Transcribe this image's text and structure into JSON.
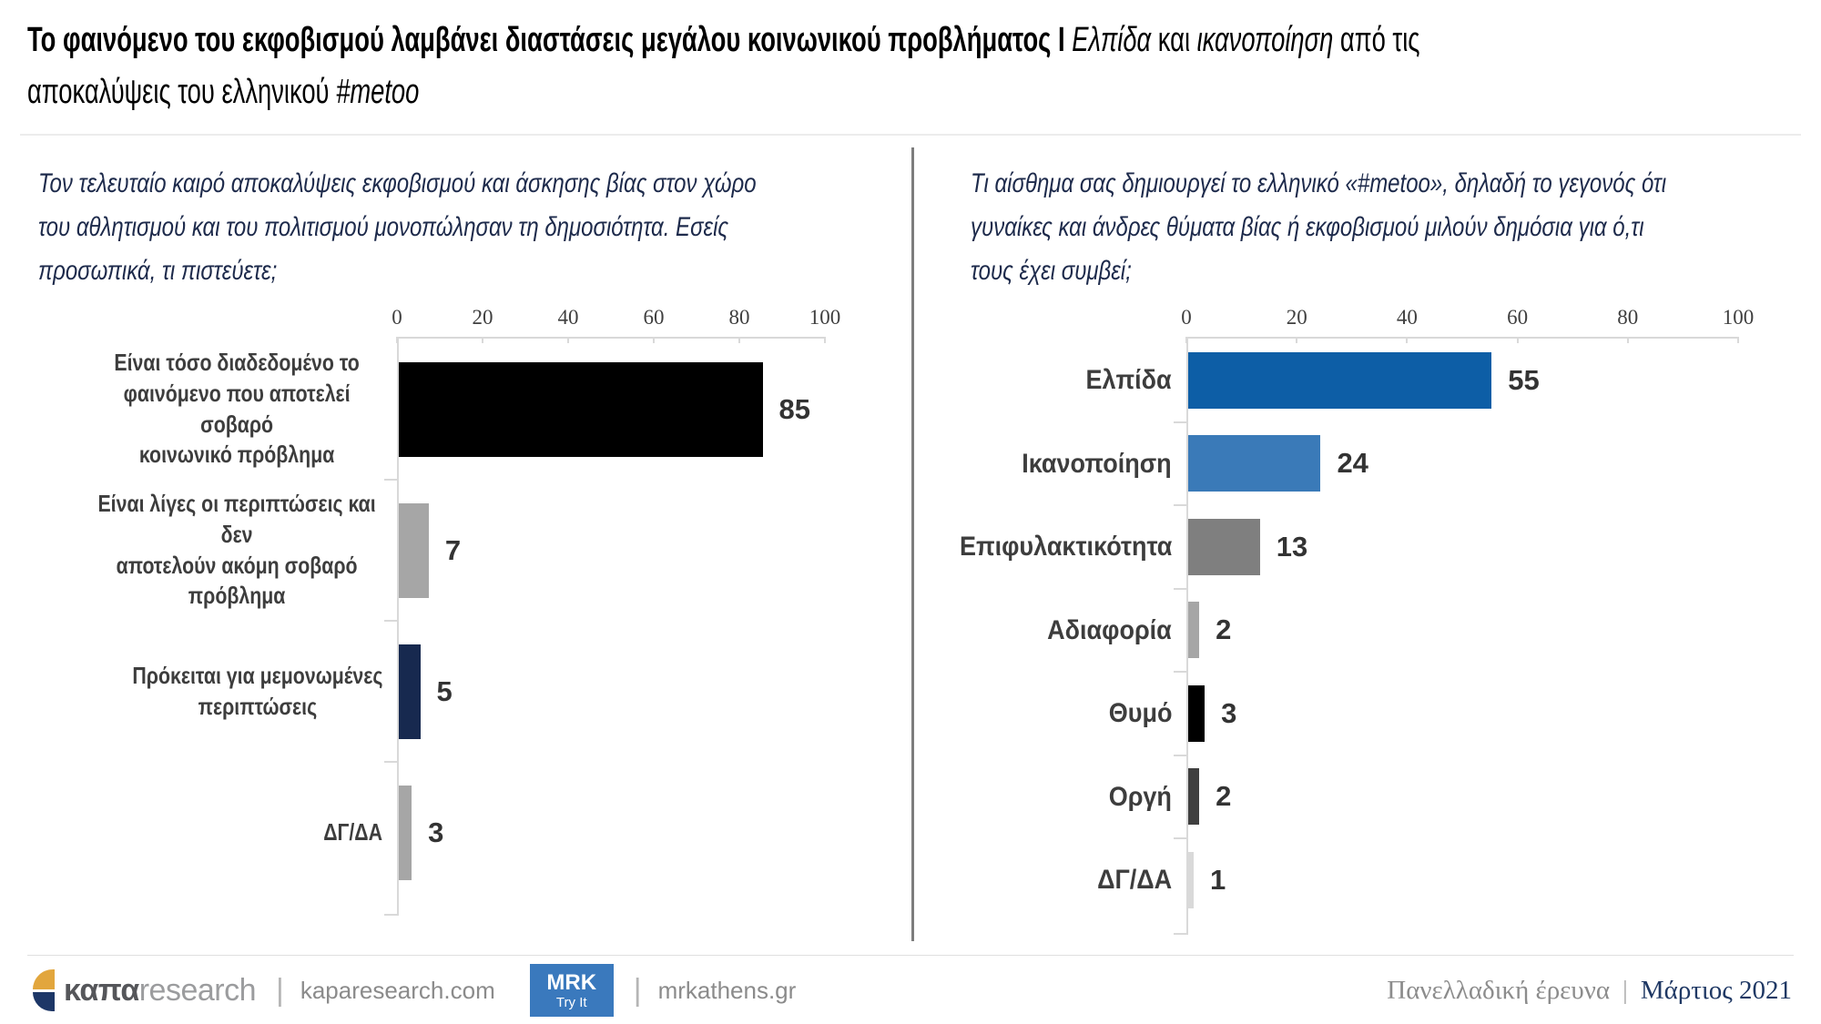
{
  "title": {
    "main": "Το φαινόμενο του εκφοβισμού λαμβάνει διαστάσεις μεγάλου κοινωνικού προβλήματος",
    "divider": "I",
    "italic1": "Ελπίδα",
    "mid1": "και",
    "italic2": "ικανοποίηση",
    "mid2": "από τις",
    "line2": "αποκαλύψεις του ελληνικού",
    "italic3": "#metoo"
  },
  "chart_data": [
    {
      "type": "bar",
      "orientation": "horizontal",
      "question": "Τον τελευταίο καιρό αποκαλύψεις εκφοβισμού και άσκησης βίας στον χώρο\nτου αθλητισμού και του πολιτισμού μονοπώλησαν τη δημοσιότητα. Εσείς\nπροσωπικά, τι πιστεύετε;",
      "categories": [
        "Είναι τόσο διαδεδομένο το\nφαινόμενο που αποτελεί σοβαρό\nκοινωνικό πρόβλημα",
        "Είναι λίγες οι περιπτώσεις και δεν\nαποτελούν ακόμη σοβαρό\nπρόβλημα",
        "Πρόκειται για μεμονωμένες\nπεριπτώσεις",
        "ΔΓ/ΔΑ"
      ],
      "values": [
        85,
        7,
        5,
        3
      ],
      "bar_colors": [
        "#000000",
        "#a6a6a6",
        "#17294f",
        "#a6a6a6"
      ],
      "xlim": [
        0,
        100
      ],
      "x_ticks": [
        0,
        20,
        40,
        60,
        80,
        100
      ],
      "grid": false,
      "value_labels": true,
      "legend": "none"
    },
    {
      "type": "bar",
      "orientation": "horizontal",
      "question": "Τι αίσθημα σας δημιουργεί το ελληνικό «#metoo», δηλαδή το γεγονός ότι\nγυναίκες και άνδρες θύματα βίας ή εκφοβισμού μιλούν δημόσια για ό,τι\nτους έχει συμβεί;",
      "categories": [
        "Ελπίδα",
        "Ικανοποίηση",
        "Επιφυλακτικότητα",
        "Αδιαφορία",
        "Θυμό",
        "Οργή",
        "ΔΓ/ΔΑ"
      ],
      "values": [
        55,
        24,
        13,
        2,
        3,
        2,
        1
      ],
      "bar_colors": [
        "#0d5ea6",
        "#3a7ab8",
        "#7f7f7f",
        "#a6a6a6",
        "#000000",
        "#3f3f3f",
        "#d9d9d9"
      ],
      "xlim": [
        0,
        100
      ],
      "x_ticks": [
        0,
        20,
        40,
        60,
        80,
        100
      ],
      "grid": false,
      "value_labels": true,
      "legend": "none"
    }
  ],
  "footer": {
    "brand_bold": "καπα",
    "brand_light": "research",
    "sep": "|",
    "site1": "kaparesearch.com",
    "badge_line1": "MRK",
    "badge_line2": "Try It",
    "site2": "mrkathens.gr",
    "survey_type": "Πανελλαδική έρευνα",
    "divider": "|",
    "date": "Μάρτιος 2021"
  },
  "colors": {
    "question_text": "#1d2a4b",
    "axis_line": "#d9d9d9",
    "badge_blue": "#3a79bd",
    "logo_yellow": "#e2a63d",
    "logo_navy": "#1d3767",
    "footer_date_navy": "#1f3864"
  }
}
